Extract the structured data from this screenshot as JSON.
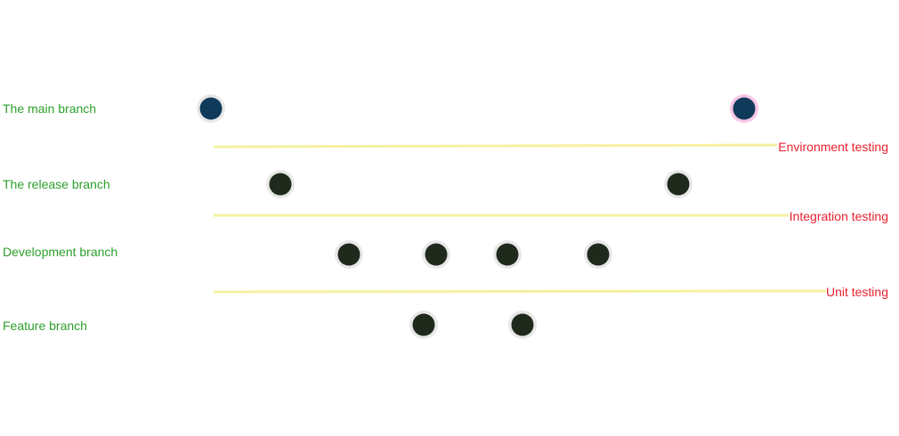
{
  "colors": {
    "branch_label": "#2ca02c",
    "testing_label": "#e8212f",
    "testing_line": "#f5f0a0",
    "main_commit": "#103a5a",
    "other_commit": "#1f2a1c",
    "commit_halo": "#e8e8e8",
    "main_head_halo": "#f7c6e6"
  },
  "branches": [
    {
      "id": "main",
      "label": "The main branch"
    },
    {
      "id": "release",
      "label": "The release branch"
    },
    {
      "id": "development",
      "label": "Development branch"
    },
    {
      "id": "feature",
      "label": "Feature branch"
    }
  ],
  "testing_stages": [
    {
      "id": "environment",
      "label": "Environment testing"
    },
    {
      "id": "integration",
      "label": "Integration testing"
    },
    {
      "id": "unit",
      "label": "Unit testing"
    }
  ],
  "commit_counts": {
    "main": 2,
    "release": 2,
    "development": 4,
    "feature": 2
  }
}
